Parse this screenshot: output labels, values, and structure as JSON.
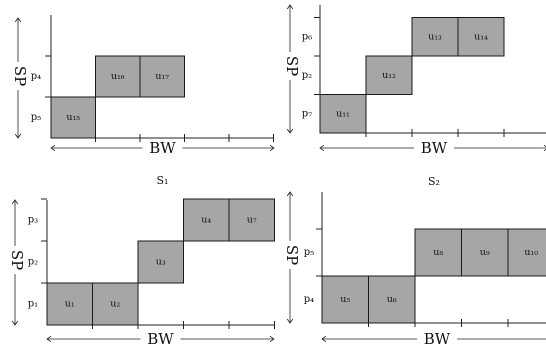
{
  "diagrams": [
    {
      "id": "s1",
      "caption": "S₁",
      "bw_label": "BW",
      "sp_label": "SP",
      "rows": [
        "p₅",
        "p₄"
      ],
      "blocks": [
        {
          "label": "u₁₅",
          "row": 0,
          "col": 0
        },
        {
          "label": "u₁₆",
          "row": 1,
          "col": 1
        },
        {
          "label": "u₁₇",
          "row": 1,
          "col": 2
        }
      ]
    },
    {
      "id": "s2",
      "caption": "S₂",
      "bw_label": "BW",
      "sp_label": "SP",
      "rows": [
        "p₇",
        "p₂",
        "p₆"
      ],
      "blocks": [
        {
          "label": "u₁₁",
          "row": 0,
          "col": 0
        },
        {
          "label": "u₁₂",
          "row": 1,
          "col": 1
        },
        {
          "label": "u₁₃",
          "row": 2,
          "col": 2
        },
        {
          "label": "u₁₄",
          "row": 2,
          "col": 3
        }
      ]
    },
    {
      "id": "s3",
      "caption": "",
      "bw_label": "BW",
      "sp_label": "SP",
      "rows": [
        "p₁",
        "p₂",
        "p₃"
      ],
      "blocks": [
        {
          "label": "u₁",
          "row": 0,
          "col": 0
        },
        {
          "label": "u₂",
          "row": 0,
          "col": 1
        },
        {
          "label": "u₃",
          "row": 1,
          "col": 2
        },
        {
          "label": "u₄",
          "row": 2,
          "col": 3
        },
        {
          "label": "u₇",
          "row": 2,
          "col": 4
        }
      ]
    },
    {
      "id": "s4",
      "caption": "",
      "bw_label": "BW",
      "sp_label": "SP",
      "rows": [
        "p₄",
        "p₅"
      ],
      "blocks": [
        {
          "label": "u₅",
          "row": 0,
          "col": 0
        },
        {
          "label": "u₆",
          "row": 0,
          "col": 1
        },
        {
          "label": "u₈",
          "row": 1,
          "col": 2
        },
        {
          "label": "u₉",
          "row": 1,
          "col": 3
        },
        {
          "label": "u₁₀",
          "row": 1,
          "col": 4
        }
      ]
    }
  ]
}
